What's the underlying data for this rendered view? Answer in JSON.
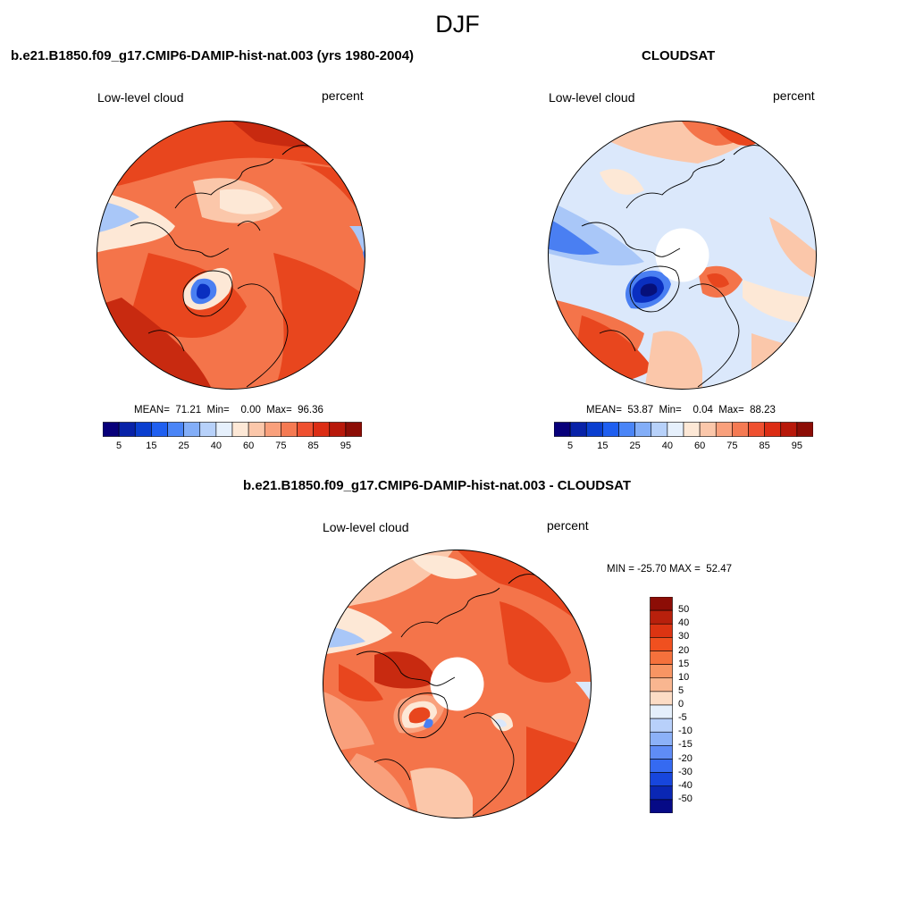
{
  "figure": {
    "season_title": "DJF"
  },
  "panel_model": {
    "title": "b.e21.B1850.f09_g17.CMIP6-DAMIP-hist-nat.003 (yrs 1980-2004)",
    "left_label": "Low-level cloud",
    "right_label": "percent",
    "stats": "MEAN=  71.21  Min=    0.00  Max=  96.36"
  },
  "panel_obs": {
    "title": "CLOUDSAT",
    "left_label": "Low-level cloud",
    "right_label": "percent",
    "stats": "MEAN=  53.87  Min=    0.04  Max=  88.23"
  },
  "panel_diff": {
    "title": "b.e21.B1850.f09_g17.CMIP6-DAMIP-hist-nat.003 - CLOUDSAT",
    "left_label": "Low-level cloud",
    "right_label": "percent",
    "stats": "MIN = -25.70 MAX =  52.47"
  },
  "colorbar_abs": {
    "ticks": [
      "5",
      "15",
      "25",
      "40",
      "60",
      "75",
      "85",
      "95"
    ],
    "colors": [
      "#08007a",
      "#0822a8",
      "#0a3fd0",
      "#1f5ff0",
      "#4a85f7",
      "#83aef8",
      "#b7d1fa",
      "#e6f0fc",
      "#fde8d6",
      "#fbc7aa",
      "#f9a07c",
      "#f57a53",
      "#ef5030",
      "#dc2d14",
      "#b8180a",
      "#8c0d06"
    ]
  },
  "colorbar_diff": {
    "ticks": [
      "50",
      "40",
      "30",
      "20",
      "15",
      "10",
      "5",
      "0",
      "-5",
      "-10",
      "-15",
      "-20",
      "-30",
      "-40",
      "-50"
    ],
    "colors": [
      "#8c0d06",
      "#b8200c",
      "#dc3412",
      "#f0501f",
      "#f5713c",
      "#f89563",
      "#f9b690",
      "#fcdcc5",
      "#e5effb",
      "#b8d0fa",
      "#8cb1f8",
      "#5f8cf6",
      "#356af1",
      "#1746dd",
      "#0a27b4",
      "#060a86"
    ]
  },
  "map_colors": {
    "land_line": "#000000",
    "deep_red": "#c82a10",
    "red": "#e8461e",
    "orange": "#f4744a",
    "salmon": "#f9a07c",
    "peach": "#fbc7aa",
    "cream": "#fde8d6",
    "pale_blue": "#dbe8fb",
    "light_blue": "#a9c7f8",
    "blue": "#4a7ff2",
    "dark_blue": "#0a2fc0",
    "navy": "#06107a"
  }
}
